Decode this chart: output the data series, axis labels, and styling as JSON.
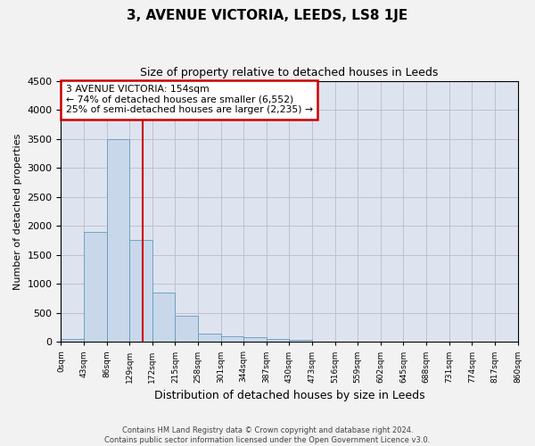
{
  "title": "3, AVENUE VICTORIA, LEEDS, LS8 1JE",
  "subtitle": "Size of property relative to detached houses in Leeds",
  "xlabel": "Distribution of detached houses by size in Leeds",
  "ylabel": "Number of detached properties",
  "bin_edges": [
    0,
    43,
    86,
    129,
    172,
    215,
    258,
    301,
    344,
    387,
    430,
    473,
    516,
    559,
    602,
    645,
    688,
    731,
    774,
    817,
    860
  ],
  "bin_labels": [
    "0sqm",
    "43sqm",
    "86sqm",
    "129sqm",
    "172sqm",
    "215sqm",
    "258sqm",
    "301sqm",
    "344sqm",
    "387sqm",
    "430sqm",
    "473sqm",
    "516sqm",
    "559sqm",
    "602sqm",
    "645sqm",
    "688sqm",
    "731sqm",
    "774sqm",
    "817sqm",
    "860sqm"
  ],
  "bar_heights": [
    50,
    1900,
    3500,
    1750,
    850,
    450,
    150,
    100,
    75,
    55,
    40,
    0,
    0,
    0,
    0,
    0,
    0,
    0,
    0,
    0
  ],
  "bar_color": "#c8d8ea",
  "bar_edge_color": "#6699bb",
  "property_size": 154,
  "property_label": "3 AVENUE VICTORIA: 154sqm",
  "annotation_line1": "← 74% of detached houses are smaller (6,552)",
  "annotation_line2": "25% of semi-detached houses are larger (2,235) →",
  "vline_color": "#cc0000",
  "annotation_box_edge": "#cc0000",
  "ylim": [
    0,
    4500
  ],
  "yticks": [
    0,
    500,
    1000,
    1500,
    2000,
    2500,
    3000,
    3500,
    4000,
    4500
  ],
  "grid_color": "#bbbbcc",
  "bg_color": "#dde4ef",
  "fig_bg_color": "#f2f2f2",
  "footer_line1": "Contains HM Land Registry data © Crown copyright and database right 2024.",
  "footer_line2": "Contains public sector information licensed under the Open Government Licence v3.0."
}
